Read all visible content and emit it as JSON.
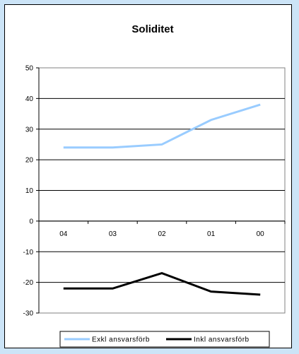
{
  "chart_data": {
    "type": "line",
    "title": "Soliditet",
    "xlabel": "",
    "ylabel": "",
    "categories": [
      "04",
      "03",
      "02",
      "01",
      "00"
    ],
    "ylim": [
      -30,
      50
    ],
    "yticks": [
      -30,
      -20,
      -10,
      0,
      10,
      20,
      30,
      40,
      50
    ],
    "grid": true,
    "legend_position": "bottom",
    "series": [
      {
        "name": "Exkl ansvarsförb",
        "values": [
          24,
          24,
          25,
          33,
          38
        ],
        "color": "#99ccff"
      },
      {
        "name": "Inkl ansvarsförb",
        "values": [
          -22,
          -22,
          -17,
          -23,
          -24
        ],
        "color": "#000000"
      }
    ]
  }
}
